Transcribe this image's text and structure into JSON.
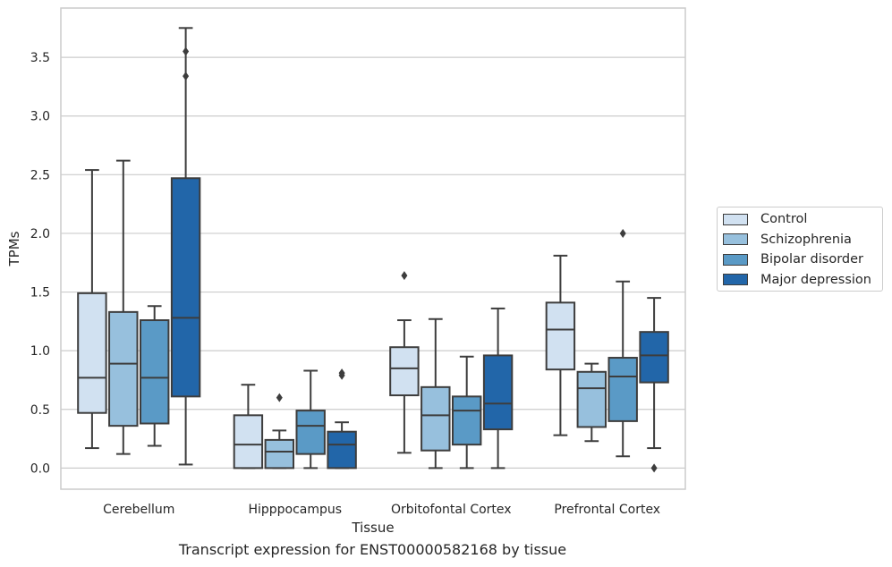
{
  "chart_data": {
    "type": "box",
    "caption": "Transcript expression for ENST00000582168 by tissue",
    "xlabel": "Tissue",
    "ylabel": "TPMs",
    "ylim": [
      -0.18,
      3.92
    ],
    "yticks": [
      0.0,
      0.5,
      1.0,
      1.5,
      2.0,
      2.5,
      3.0,
      3.5
    ],
    "ytick_labels": [
      "0.0",
      "0.5",
      "1.0",
      "1.5",
      "2.0",
      "2.5",
      "3.0",
      "3.5"
    ],
    "grid": "horizontal",
    "legend_position": "right",
    "categories": [
      "Cerebellum",
      "Hipppocampus",
      "Orbitofontal Cortex",
      "Prefrontal Cortex"
    ],
    "series": [
      {
        "name": "Control",
        "color": "#d1e1f1",
        "boxes": [
          {
            "whisker_low": 0.17,
            "q1": 0.47,
            "median": 0.77,
            "q3": 1.49,
            "whisker_high": 2.54,
            "outliers": []
          },
          {
            "whisker_low": 0.0,
            "q1": 0.0,
            "median": 0.2,
            "q3": 0.45,
            "whisker_high": 0.71,
            "outliers": []
          },
          {
            "whisker_low": 0.13,
            "q1": 0.62,
            "median": 0.85,
            "q3": 1.03,
            "whisker_high": 1.26,
            "outliers": [
              1.64
            ]
          },
          {
            "whisker_low": 0.28,
            "q1": 0.84,
            "median": 1.18,
            "q3": 1.41,
            "whisker_high": 1.81,
            "outliers": []
          }
        ]
      },
      {
        "name": "Schizophrenia",
        "color": "#97c0dd",
        "boxes": [
          {
            "whisker_low": 0.12,
            "q1": 0.36,
            "median": 0.89,
            "q3": 1.33,
            "whisker_high": 2.62,
            "outliers": []
          },
          {
            "whisker_low": 0.0,
            "q1": 0.0,
            "median": 0.14,
            "q3": 0.24,
            "whisker_high": 0.32,
            "outliers": [
              0.6
            ]
          },
          {
            "whisker_low": 0.0,
            "q1": 0.15,
            "median": 0.45,
            "q3": 0.69,
            "whisker_high": 1.27,
            "outliers": []
          },
          {
            "whisker_low": 0.23,
            "q1": 0.35,
            "median": 0.68,
            "q3": 0.82,
            "whisker_high": 0.89,
            "outliers": []
          }
        ]
      },
      {
        "name": "Bipolar disorder",
        "color": "#5a9ac6",
        "boxes": [
          {
            "whisker_low": 0.19,
            "q1": 0.38,
            "median": 0.77,
            "q3": 1.26,
            "whisker_high": 1.38,
            "outliers": []
          },
          {
            "whisker_low": 0.0,
            "q1": 0.12,
            "median": 0.36,
            "q3": 0.49,
            "whisker_high": 0.83,
            "outliers": []
          },
          {
            "whisker_low": 0.0,
            "q1": 0.2,
            "median": 0.49,
            "q3": 0.61,
            "whisker_high": 0.95,
            "outliers": []
          },
          {
            "whisker_low": 0.1,
            "q1": 0.4,
            "median": 0.78,
            "q3": 0.94,
            "whisker_high": 1.59,
            "outliers": [
              2.0
            ]
          }
        ]
      },
      {
        "name": "Major depression",
        "color": "#2266a9",
        "boxes": [
          {
            "whisker_low": 0.03,
            "q1": 0.61,
            "median": 1.28,
            "q3": 2.47,
            "whisker_high": 3.75,
            "outliers": [
              3.34,
              3.55
            ]
          },
          {
            "whisker_low": 0.0,
            "q1": 0.0,
            "median": 0.2,
            "q3": 0.31,
            "whisker_high": 0.39,
            "outliers": [
              0.79,
              0.81
            ]
          },
          {
            "whisker_low": 0.0,
            "q1": 0.33,
            "median": 0.55,
            "q3": 0.96,
            "whisker_high": 1.36,
            "outliers": []
          },
          {
            "whisker_low": 0.17,
            "q1": 0.73,
            "median": 0.96,
            "q3": 1.16,
            "whisker_high": 1.45,
            "outliers": [
              0.0
            ]
          }
        ]
      }
    ]
  }
}
